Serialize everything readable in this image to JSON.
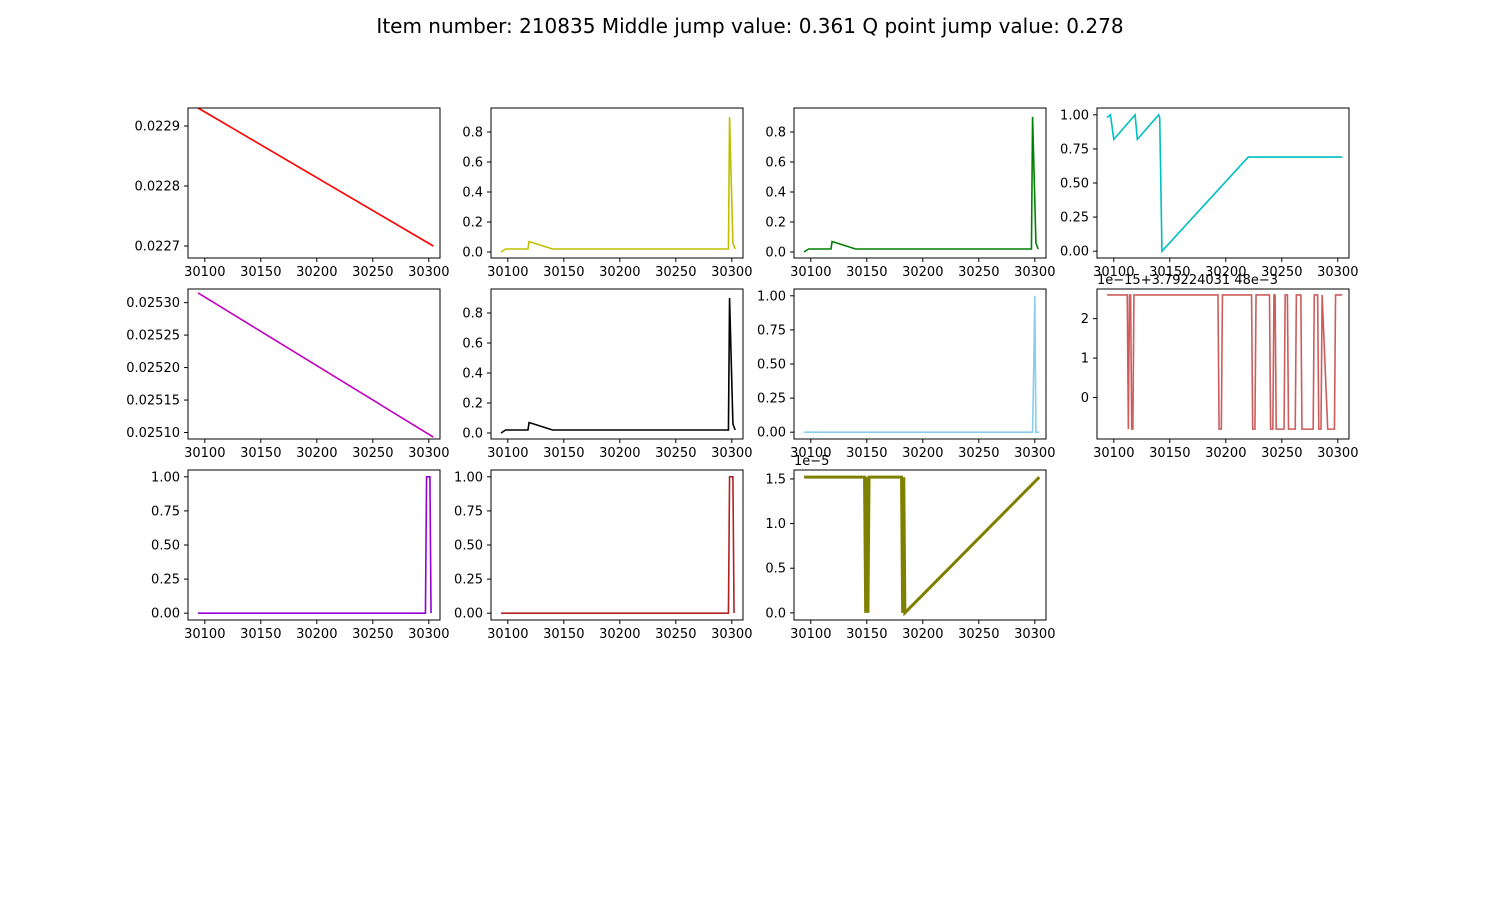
{
  "title": "Item number: 210835  Middle jump value: 0.361  Q point jump value: 0.278",
  "chart_data": [
    {
      "type": "line",
      "color": "#ff0000",
      "xlim": [
        30085,
        30310
      ],
      "xticks": [
        30100,
        30150,
        30200,
        30250,
        30300
      ],
      "ylim": [
        0.02268,
        0.02293
      ],
      "yticks": [
        0.0227,
        0.0228,
        0.0229
      ],
      "ytick_labels": [
        "0.0227",
        "0.0228",
        "0.0229"
      ],
      "x": [
        30094,
        30304
      ],
      "y": [
        0.02293,
        0.0227
      ]
    },
    {
      "type": "line",
      "color": "#bfbf00",
      "xlim": [
        30085,
        30310
      ],
      "xticks": [
        30100,
        30150,
        30200,
        30250,
        30300
      ],
      "ylim": [
        -0.04,
        0.96
      ],
      "yticks": [
        0,
        0.2,
        0.4,
        0.6,
        0.8
      ],
      "ytick_labels": [
        "0.0",
        "0.2",
        "0.4",
        "0.6",
        "0.8"
      ],
      "x": [
        30094,
        30098,
        30118,
        30119,
        30140,
        30297,
        30298,
        30301,
        30303
      ],
      "y": [
        0.0,
        0.02,
        0.02,
        0.07,
        0.02,
        0.02,
        0.9,
        0.06,
        0.02
      ]
    },
    {
      "type": "line",
      "color": "#008000",
      "xlim": [
        30085,
        30310
      ],
      "xticks": [
        30100,
        30150,
        30200,
        30250,
        30300
      ],
      "ylim": [
        -0.04,
        0.96
      ],
      "yticks": [
        0,
        0.2,
        0.4,
        0.6,
        0.8
      ],
      "ytick_labels": [
        "0.0",
        "0.2",
        "0.4",
        "0.6",
        "0.8"
      ],
      "x": [
        30094,
        30098,
        30118,
        30119,
        30140,
        30297,
        30298,
        30301,
        30303
      ],
      "y": [
        0.0,
        0.02,
        0.02,
        0.07,
        0.02,
        0.02,
        0.9,
        0.06,
        0.02
      ]
    },
    {
      "type": "line",
      "color": "#00bfbf",
      "xlim": [
        30085,
        30310
      ],
      "xticks": [
        30100,
        30150,
        30200,
        30250,
        30300
      ],
      "ylim": [
        -0.05,
        1.05
      ],
      "yticks": [
        0,
        0.25,
        0.5,
        0.75,
        1.0
      ],
      "ytick_labels": [
        "0.00",
        "0.25",
        "0.50",
        "0.75",
        "1.00"
      ],
      "x": [
        30094,
        30097,
        30100,
        30119,
        30121,
        30140,
        30141,
        30143,
        30220,
        30304
      ],
      "y": [
        0.98,
        1.0,
        0.82,
        1.0,
        0.82,
        1.0,
        0.98,
        0.0,
        0.69,
        0.69
      ]
    },
    {
      "type": "line",
      "color": "#bf00bf",
      "xlim": [
        30085,
        30310
      ],
      "xticks": [
        30100,
        30150,
        30200,
        30250,
        30300
      ],
      "ylim": [
        0.02509,
        0.025321
      ],
      "yticks": [
        0.0251,
        0.02515,
        0.0252,
        0.02525,
        0.0253
      ],
      "ytick_labels": [
        "0.02510",
        "0.02515",
        "0.02520",
        "0.02525",
        "0.02530"
      ],
      "x": [
        30094,
        30304
      ],
      "y": [
        0.025315,
        0.025093
      ]
    },
    {
      "type": "line",
      "color": "#000000",
      "xlim": [
        30085,
        30310
      ],
      "xticks": [
        30100,
        30150,
        30200,
        30250,
        30300
      ],
      "ylim": [
        -0.04,
        0.96
      ],
      "yticks": [
        0,
        0.2,
        0.4,
        0.6,
        0.8
      ],
      "ytick_labels": [
        "0.0",
        "0.2",
        "0.4",
        "0.6",
        "0.8"
      ],
      "x": [
        30094,
        30098,
        30118,
        30119,
        30140,
        30297,
        30298,
        30301,
        30303
      ],
      "y": [
        0.0,
        0.02,
        0.02,
        0.07,
        0.02,
        0.02,
        0.9,
        0.06,
        0.02
      ]
    },
    {
      "type": "line",
      "color": "#87ceeb",
      "xlim": [
        30085,
        30310
      ],
      "xticks": [
        30100,
        30150,
        30200,
        30250,
        30300
      ],
      "ylim": [
        -0.05,
        1.05
      ],
      "yticks": [
        0,
        0.25,
        0.5,
        0.75,
        1.0
      ],
      "ytick_labels": [
        "0.00",
        "0.25",
        "0.50",
        "0.75",
        "1.00"
      ],
      "x": [
        30094,
        30298,
        30299,
        30300,
        30301,
        30304
      ],
      "y": [
        0.0,
        0.0,
        0.45,
        1.0,
        0.0,
        0.0
      ]
    },
    {
      "type": "line",
      "color": "#cd5c5c",
      "offset_label": "1e−15+3.79224031 48e−3",
      "xlim": [
        30085,
        30310
      ],
      "xticks": [
        30100,
        30150,
        30200,
        30250,
        30300
      ],
      "ylim": [
        -1.05,
        2.75
      ],
      "yticks": [
        0,
        1,
        2
      ],
      "ytick_labels": [
        "0",
        "1",
        "2"
      ],
      "x": [
        30094,
        30112,
        30113,
        30114,
        30115,
        30116,
        30117,
        30118,
        30119,
        30193,
        30194,
        30196,
        30197,
        30223,
        30224,
        30226,
        30227,
        30239,
        30240,
        30242,
        30243,
        30244,
        30245,
        30252,
        30253,
        30255,
        30256,
        30262,
        30263,
        30267,
        30268,
        30278,
        30279,
        30282,
        30283,
        30285,
        30286,
        30291,
        30292,
        30297,
        30298,
        30304
      ],
      "y": [
        2.6,
        2.6,
        -0.8,
        2.6,
        2.6,
        -0.8,
        -0.8,
        2.6,
        2.6,
        2.6,
        -0.8,
        -0.8,
        2.6,
        2.6,
        -0.8,
        -0.8,
        2.6,
        2.6,
        -0.8,
        -0.8,
        2.6,
        2.6,
        -0.8,
        -0.8,
        2.6,
        2.6,
        -0.8,
        -0.8,
        2.6,
        2.6,
        -0.8,
        -0.8,
        2.6,
        2.6,
        -0.8,
        -0.8,
        2.6,
        -0.8,
        -0.8,
        -0.8,
        2.6,
        2.6
      ]
    },
    {
      "type": "line",
      "color": "#9400d3",
      "xlim": [
        30085,
        30310
      ],
      "xticks": [
        30100,
        30150,
        30200,
        30250,
        30300
      ],
      "ylim": [
        -0.05,
        1.05
      ],
      "yticks": [
        0,
        0.25,
        0.5,
        0.75,
        1.0
      ],
      "ytick_labels": [
        "0.00",
        "0.25",
        "0.50",
        "0.75",
        "1.00"
      ],
      "x": [
        30094,
        30297,
        30298,
        30301,
        30302
      ],
      "y": [
        0.0,
        0.0,
        1.0,
        1.0,
        0.0
      ]
    },
    {
      "type": "line",
      "color": "#b22222",
      "xlim": [
        30085,
        30310
      ],
      "xticks": [
        30100,
        30150,
        30200,
        30250,
        30300
      ],
      "ylim": [
        -0.05,
        1.05
      ],
      "yticks": [
        0,
        0.25,
        0.5,
        0.75,
        1.0
      ],
      "ytick_labels": [
        "0.00",
        "0.25",
        "0.50",
        "0.75",
        "1.00"
      ],
      "x": [
        30094,
        30297,
        30298,
        30301,
        30302
      ],
      "y": [
        0.0,
        0.0,
        1.0,
        1.0,
        0.0
      ]
    },
    {
      "type": "line",
      "color": "#808000",
      "offset_label": "1e−5",
      "xlim": [
        30085,
        30310
      ],
      "xticks": [
        30100,
        30150,
        30200,
        30250,
        30300
      ],
      "ylim": [
        -0.08,
        1.6
      ],
      "yticks": [
        0,
        0.5,
        1.0,
        1.5
      ],
      "ytick_labels": [
        "0.0",
        "0.5",
        "1.0",
        "1.5"
      ],
      "x": [
        30094,
        30148,
        30149,
        30150,
        30151,
        30152,
        30181,
        30182,
        30183,
        30184,
        30304
      ],
      "y": [
        1.52,
        1.52,
        0.0,
        1.52,
        0.0,
        1.52,
        1.52,
        0.0,
        1.52,
        0.0,
        1.52
      ]
    }
  ]
}
